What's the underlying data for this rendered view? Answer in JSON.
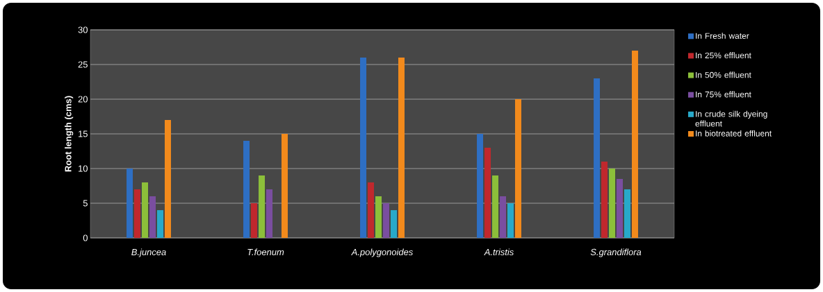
{
  "chart_data": {
    "type": "bar",
    "ylabel": "Root length (cms)",
    "categories": [
      "*B.juncea*",
      "*T.foenum*",
      "*A.polygonoides*",
      "*A.tristis*",
      "*S.grandiflora*"
    ],
    "series": [
      {
        "name": "In Fresh water",
        "color": "#2e6fc4",
        "values": [
          10,
          14,
          26,
          15,
          23
        ]
      },
      {
        "name": "In 25% effluent",
        "color": "#c0282d",
        "values": [
          7,
          5,
          8,
          13,
          11
        ]
      },
      {
        "name": "In 50% effluent",
        "color": "#8cbf3a",
        "values": [
          8,
          9,
          6,
          9,
          10
        ]
      },
      {
        "name": "In 75% effluent",
        "color": "#7a4ea0",
        "values": [
          6,
          7,
          5,
          6,
          8.5
        ]
      },
      {
        "name": "In  crude  silk dyeing effluent",
        "color": "#28a9c9",
        "values": [
          4,
          null,
          4,
          5,
          7
        ]
      },
      {
        "name": "In biotreated effluent",
        "color": "#f28a1c",
        "values": [
          17,
          15,
          26,
          20,
          27
        ]
      }
    ],
    "ylim": [
      0,
      30
    ],
    "yticks": [
      0,
      5,
      10,
      15,
      20,
      25,
      30
    ],
    "grid": "y",
    "legend": "right"
  }
}
